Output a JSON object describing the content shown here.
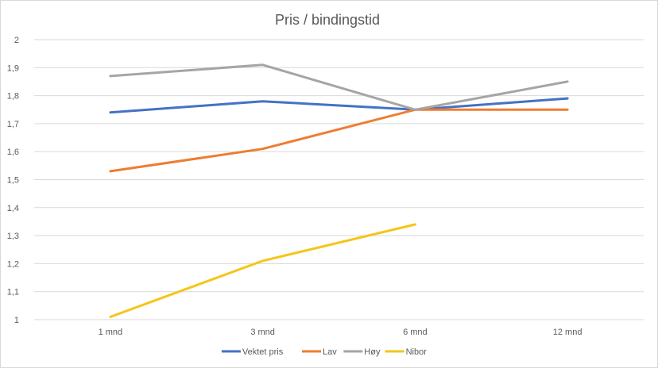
{
  "chart_data": {
    "type": "line",
    "title": "Pris / bindingstid",
    "xlabel": "",
    "ylabel": "",
    "categories": [
      "1 mnd",
      "3 mnd",
      "6 mnd",
      "12 mnd"
    ],
    "ylim": [
      1,
      2
    ],
    "yticks": [
      "1",
      "1,1",
      "1,2",
      "1,3",
      "1,4",
      "1,5",
      "1,6",
      "1,7",
      "1,8",
      "1,9",
      "2"
    ],
    "grid": true,
    "legend": "bottom",
    "series": [
      {
        "name": "Vektet pris",
        "color": "#4472c4",
        "values": [
          1.74,
          1.78,
          1.75,
          1.79
        ]
      },
      {
        "name": "Lav",
        "color": "#ed7d31",
        "values": [
          1.53,
          1.61,
          1.75,
          1.75
        ]
      },
      {
        "name": "Høy",
        "color": "#a5a5a5",
        "values": [
          1.87,
          1.91,
          1.75,
          1.85
        ]
      },
      {
        "name": "Nibor",
        "color": "#f5c518",
        "values": [
          1.01,
          1.21,
          1.34,
          null
        ]
      }
    ]
  }
}
